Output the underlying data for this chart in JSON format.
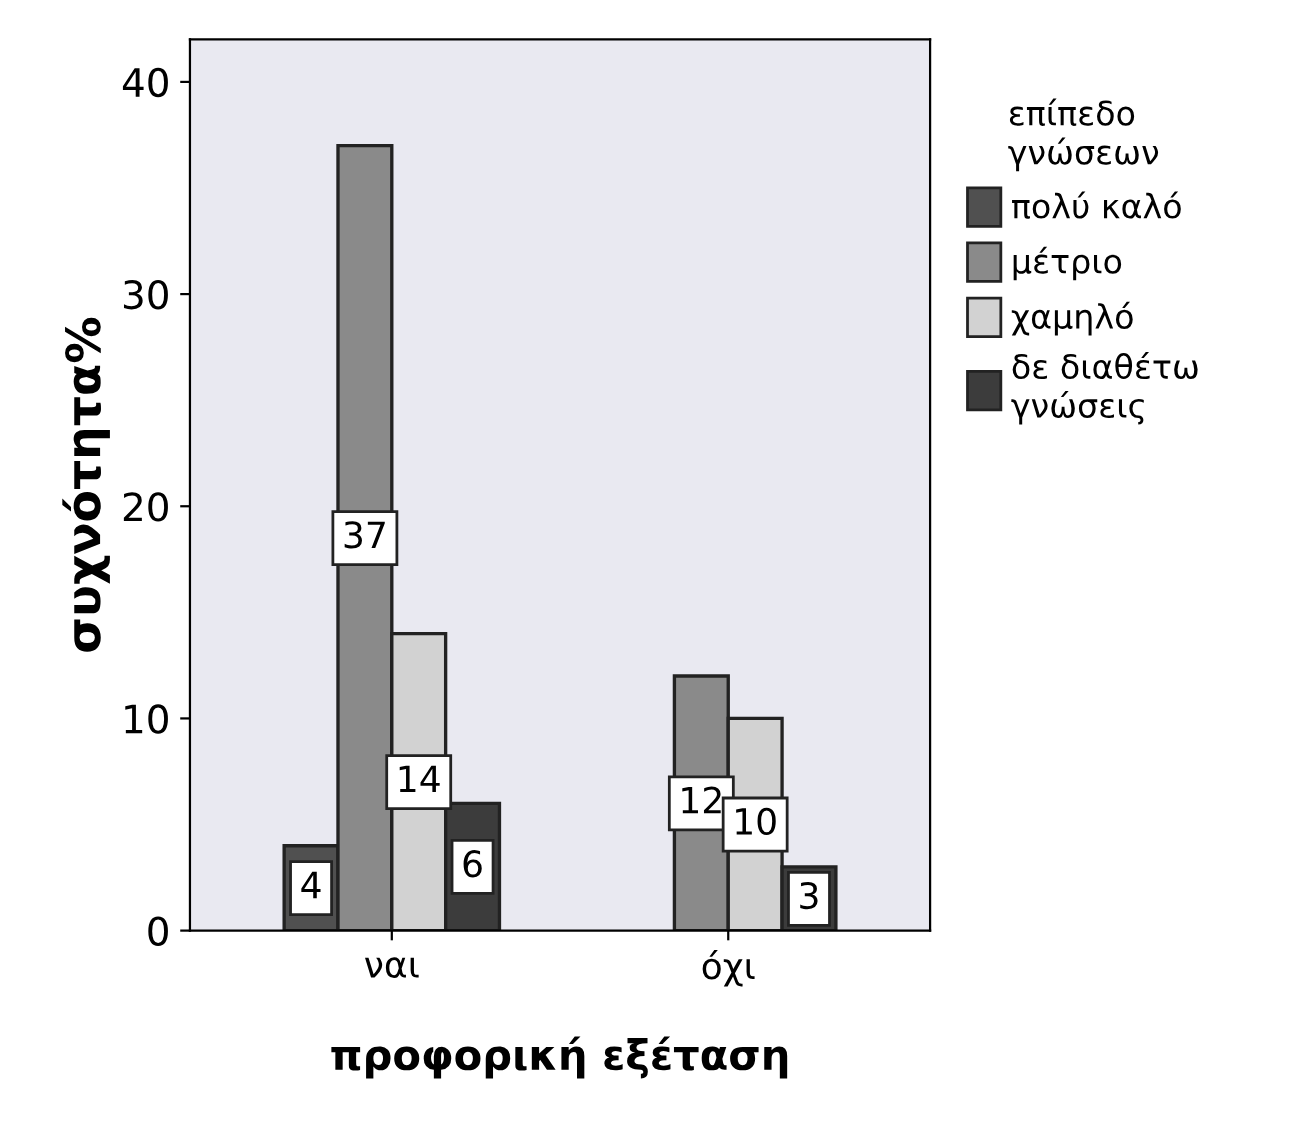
{
  "chart_data": {
    "type": "bar",
    "xlabel": "προφορική εξέταση",
    "ylabel": "συχνότητα%",
    "legend_title": "επίπεδο\nγνώσεων",
    "categories": [
      "ναι",
      "όχι"
    ],
    "series": [
      {
        "name": "πολύ καλό",
        "color": "#505050",
        "values": [
          4,
          null
        ]
      },
      {
        "name": "μέτριο",
        "color": "#8a8a8a",
        "values": [
          37,
          12
        ]
      },
      {
        "name": "χαμηλό",
        "color": "#d2d2d2",
        "values": [
          14,
          10
        ]
      },
      {
        "name": "δε διαθέτω\nγνώσεις",
        "color": "#3c3c3c",
        "values": [
          6,
          3
        ]
      }
    ],
    "ylim": [
      0,
      42
    ],
    "yticks": [
      0,
      10,
      20,
      30,
      40
    ],
    "grid": false,
    "legend": "right",
    "data_labels": true
  }
}
